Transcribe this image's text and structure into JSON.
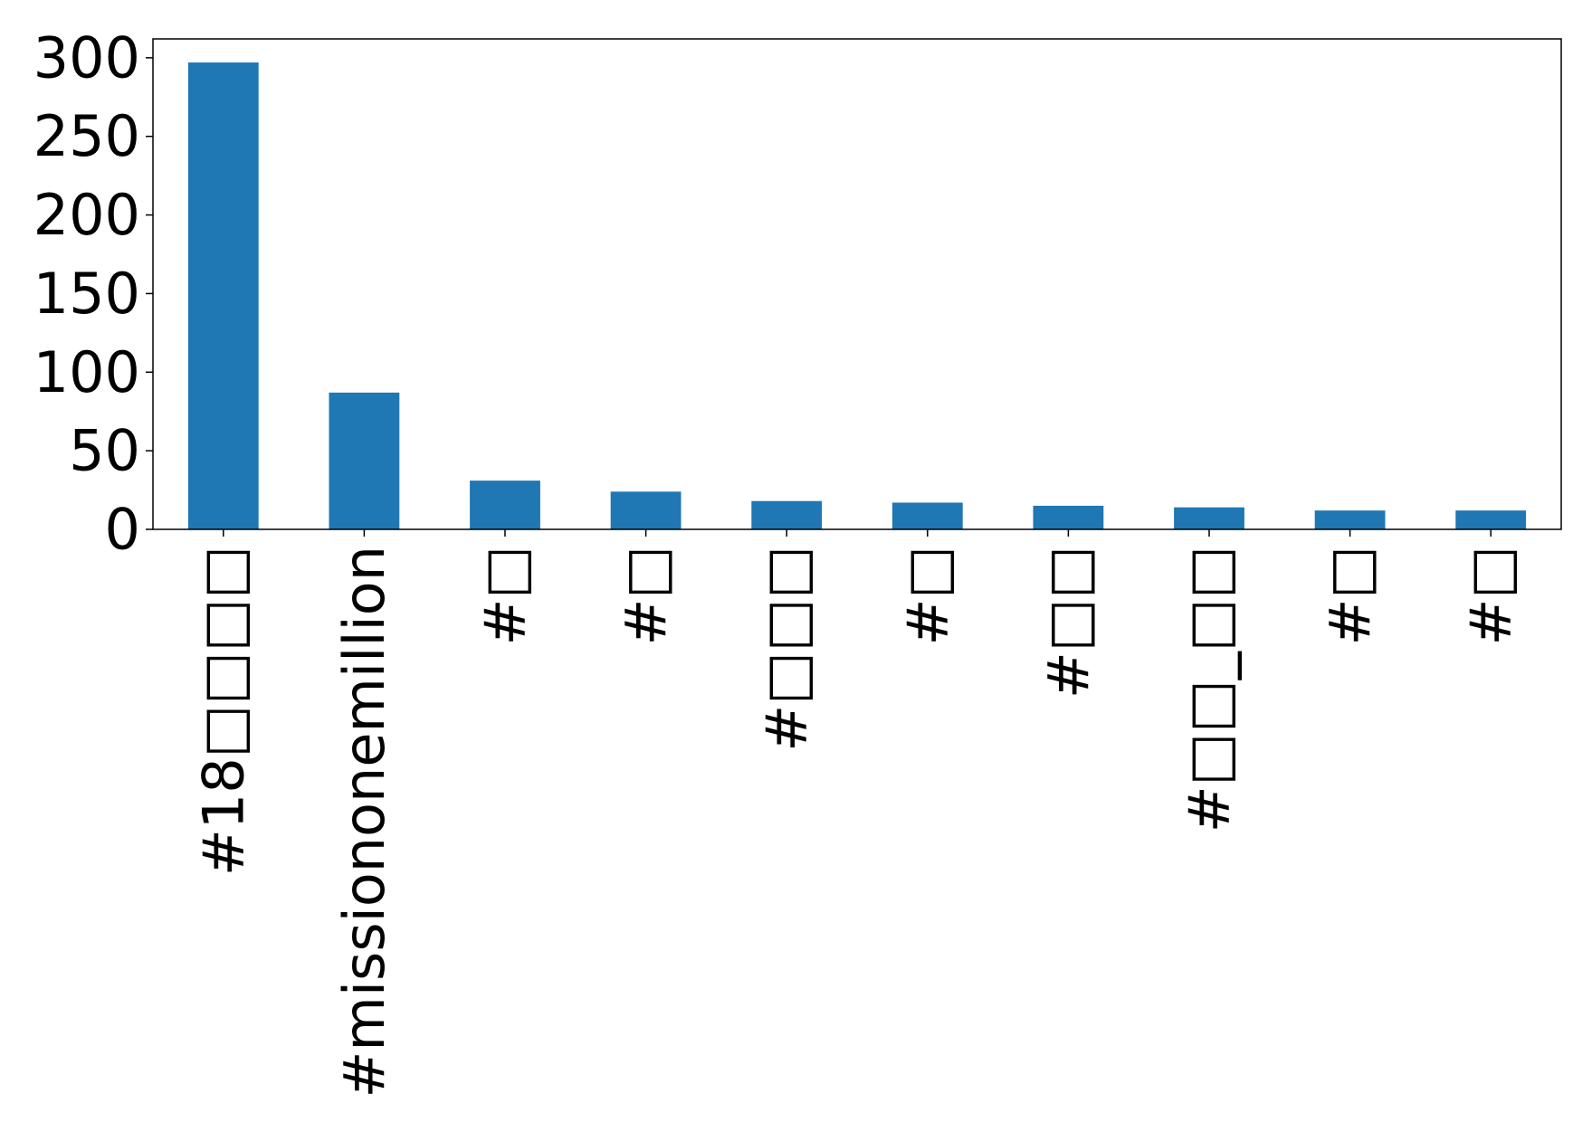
{
  "chart_data": {
    "type": "bar",
    "categories": [
      "#18□□□□",
      "#missiononemillion",
      "#□",
      "#□",
      "#□□□",
      "#□",
      "#□□",
      "#□□_□□",
      "#□",
      "#□"
    ],
    "values": [
      297,
      87,
      31,
      24,
      18,
      17,
      15,
      14,
      12,
      12
    ],
    "ylim": [
      0,
      312
    ],
    "yticks": [
      0,
      50,
      100,
      150,
      200,
      250,
      300
    ],
    "ytick_labels": [
      "0",
      "50",
      "100",
      "150",
      "200",
      "250",
      "300"
    ],
    "title": "",
    "xlabel": "",
    "ylabel": "",
    "legend": "none",
    "grid": false,
    "colors": {
      "bar": "#1f77b4",
      "axes": "#000000",
      "background": "#ffffff"
    }
  }
}
